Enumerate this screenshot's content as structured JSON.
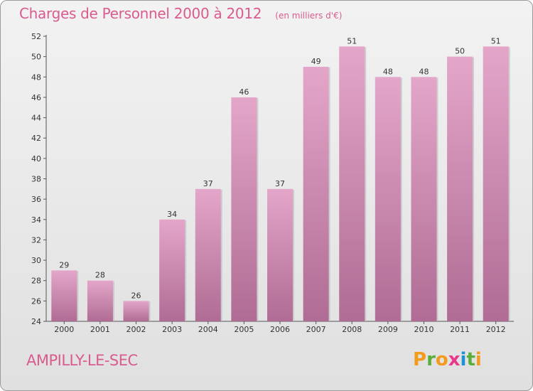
{
  "chart_data": {
    "type": "bar",
    "title": "Charges de Personnel 2000 à 2012",
    "subtitle": "(en milliers d'€)",
    "categories": [
      "2000",
      "2001",
      "2002",
      "2003",
      "2004",
      "2005",
      "2006",
      "2007",
      "2008",
      "2009",
      "2010",
      "2011",
      "2012"
    ],
    "values": [
      29,
      28,
      26,
      34,
      37,
      46,
      37,
      49,
      51,
      48,
      48,
      50,
      51
    ],
    "ylim": [
      24,
      52
    ],
    "yticks": [
      24,
      26,
      28,
      30,
      32,
      34,
      36,
      38,
      40,
      42,
      44,
      46,
      48,
      50,
      52
    ],
    "grid": false,
    "legend": "none",
    "bar_color_top": "#e3a6c9",
    "bar_color_bottom": "#b06c94"
  },
  "commune": "AMPILLY-LE-SEC",
  "logo": {
    "letters": [
      "P",
      "r",
      "o",
      "x",
      "i",
      "t",
      "i"
    ],
    "colors": [
      "#f29b1d",
      "#5cae3b",
      "#f29b1d",
      "#e8398b",
      "#1f8fd6",
      "#5cae3b",
      "#f29b1d"
    ]
  }
}
